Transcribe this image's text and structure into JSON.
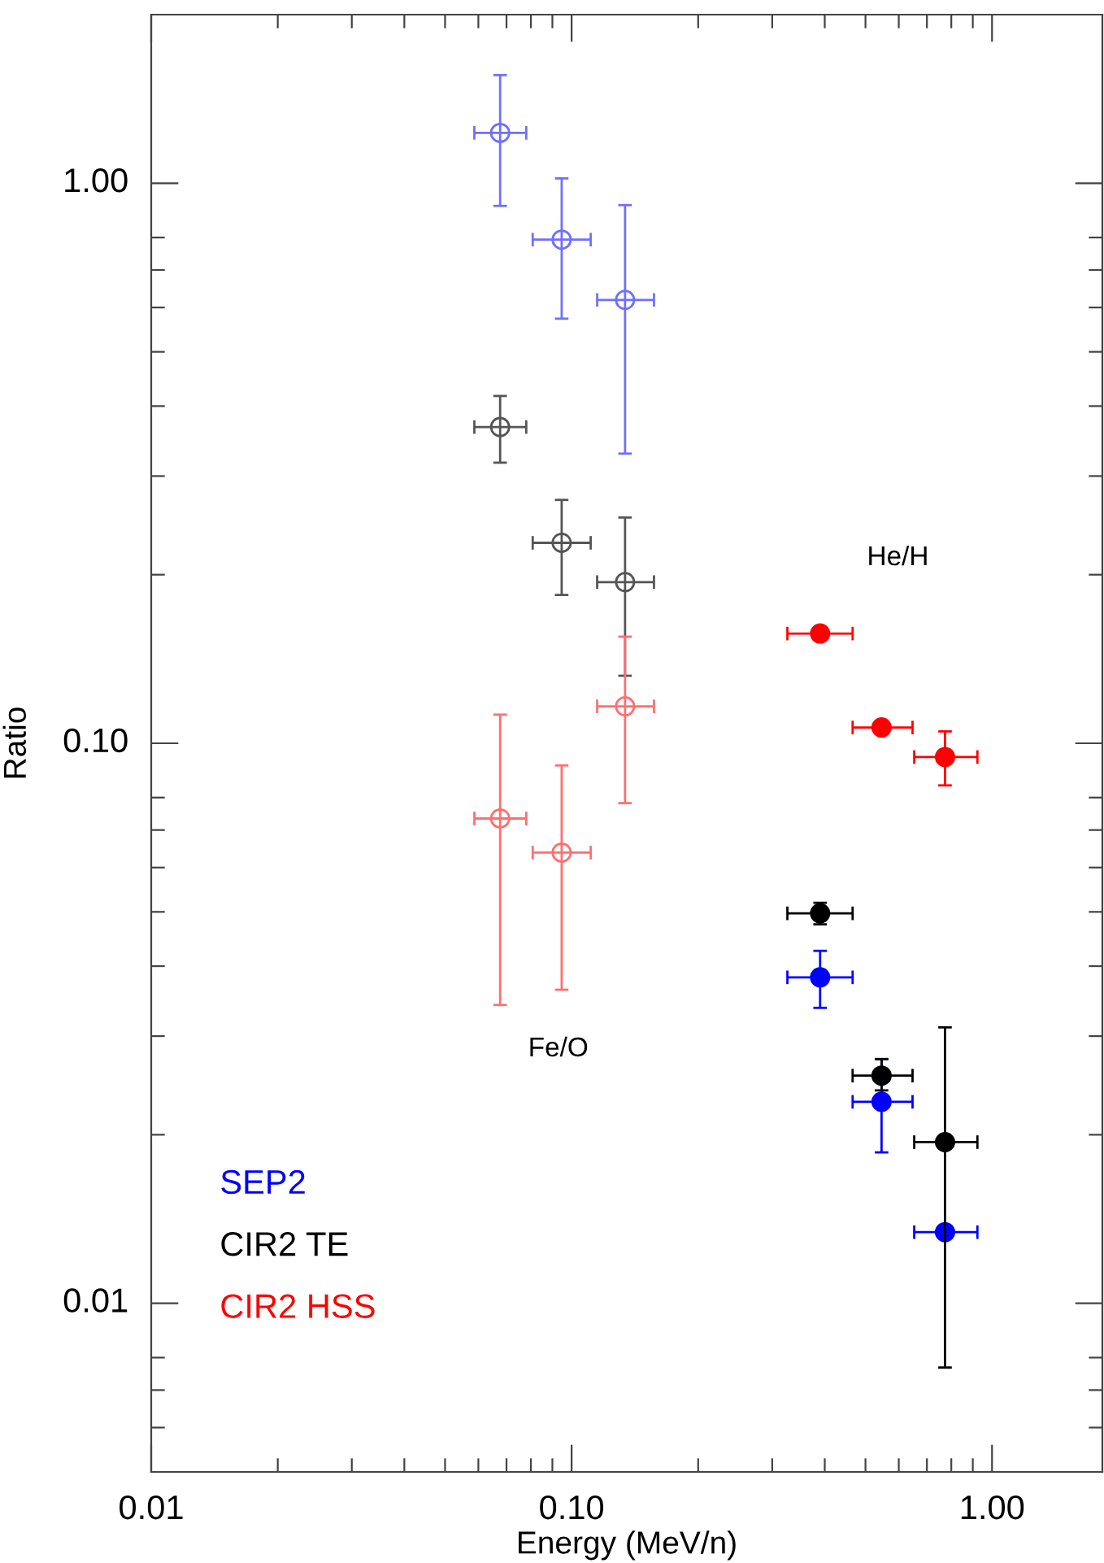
{
  "chart_data": {
    "type": "scatter",
    "xlabel": "Energy (MeV/n)",
    "ylabel": "Ratio",
    "log": "xy",
    "xlim": [
      0.01,
      1.83
    ],
    "ylim": [
      0.005,
      2.0
    ],
    "xticks": [
      {
        "value": 0.01,
        "label": "0.01"
      },
      {
        "value": 0.02,
        "label": null
      },
      {
        "value": 0.03,
        "label": null
      },
      {
        "value": 0.04,
        "label": null
      },
      {
        "value": 0.05,
        "label": null
      },
      {
        "value": 0.06,
        "label": null
      },
      {
        "value": 0.07,
        "label": null
      },
      {
        "value": 0.08,
        "label": null
      },
      {
        "value": 0.09,
        "label": null
      },
      {
        "value": 0.1,
        "label": "0.10"
      },
      {
        "value": 0.2,
        "label": null
      },
      {
        "value": 0.3,
        "label": null
      },
      {
        "value": 0.4,
        "label": null
      },
      {
        "value": 0.5,
        "label": null
      },
      {
        "value": 0.6,
        "label": null
      },
      {
        "value": 0.7,
        "label": null
      },
      {
        "value": 0.8,
        "label": null
      },
      {
        "value": 0.9,
        "label": null
      },
      {
        "value": 1,
        "label": "1.00"
      }
    ],
    "yticks": [
      {
        "value": 0.006,
        "label": null
      },
      {
        "value": 0.007,
        "label": null
      },
      {
        "value": 0.008,
        "label": null
      },
      {
        "value": 0.01,
        "label": "0.01"
      },
      {
        "value": 0.02,
        "label": null
      },
      {
        "value": 0.03,
        "label": null
      },
      {
        "value": 0.04,
        "label": null
      },
      {
        "value": 0.05,
        "label": null
      },
      {
        "value": 0.06,
        "label": null
      },
      {
        "value": 0.07,
        "label": null
      },
      {
        "value": 0.08,
        "label": null
      },
      {
        "value": 0.1,
        "label": "0.10"
      },
      {
        "value": 0.2,
        "label": null
      },
      {
        "value": 0.3,
        "label": null
      },
      {
        "value": 0.4,
        "label": null
      },
      {
        "value": 0.5,
        "label": null
      },
      {
        "value": 0.6,
        "label": null
      },
      {
        "value": 0.7,
        "label": null
      },
      {
        "value": 0.8,
        "label": null
      },
      {
        "value": 1,
        "label": "1.00"
      }
    ],
    "grid": false,
    "legend": "bottom left",
    "marker": "circle",
    "annotations": [
      "He/H",
      "Fe/O"
    ],
    "series": [
      {
        "color": "#6f6fff",
        "x": [
          0.0676,
          0.0947,
          0.134
        ],
        "values": [
          1.23,
          0.793,
          0.619
        ],
        "errors": [
          [
            0.911,
            1.56
          ],
          [
            0.573,
            1.02
          ],
          [
            0.329,
            0.914
          ]
        ],
        "xerrors": [
          [
            0.0587,
            0.078
          ],
          [
            0.0808,
            0.111
          ],
          [
            0.115,
            0.157
          ]
        ]
      },
      {
        "color": "#555555",
        "x": [
          0.0676,
          0.0947,
          0.134
        ],
        "values": [
          0.367,
          0.228,
          0.194
        ],
        "errors": [
          [
            0.317,
            0.417
          ],
          [
            0.184,
            0.272
          ],
          [
            0.132,
            0.253
          ]
        ],
        "xerrors": [
          [
            0.0587,
            0.078
          ],
          [
            0.0808,
            0.111
          ],
          [
            0.115,
            0.157
          ]
        ]
      },
      {
        "color": "#ff6f6f",
        "x": [
          0.0676,
          0.0947,
          0.134
        ],
        "values": [
          0.0734,
          0.0638,
          0.1164
        ],
        "errors": [
          [
            0.0341,
            0.1125
          ],
          [
            0.0363,
            0.0913
          ],
          [
            0.0782,
            0.155
          ]
        ],
        "xerrors": [
          [
            0.0587,
            0.078
          ],
          [
            0.0808,
            0.111
          ],
          [
            0.115,
            0.157
          ]
        ]
      },
      {
        "name": "SEP2",
        "color": "#0000ff",
        "x": [
          0.39,
          0.546,
          0.773
        ],
        "values": [
          0.0382,
          0.0229,
          0.0134
        ],
        "errors": [
          [
            0.0337,
            0.0426
          ],
          [
            0.0186,
            0.0273
          ],
          null
        ],
        "xerrors": [
          [
            0.326,
            0.466
          ],
          [
            0.466,
            0.647
          ],
          [
            0.653,
            0.923
          ]
        ]
      },
      {
        "name": "CIR2 TE",
        "color": "#000000",
        "x": [
          0.39,
          0.546,
          0.773
        ],
        "values": [
          0.0497,
          0.0255,
          0.0194
        ],
        "errors": [
          [
            0.0475,
            0.0519
          ],
          [
            0.024,
            0.0273
          ],
          [
            0.00768,
            0.0311
          ]
        ],
        "xerrors": [
          [
            0.326,
            0.466
          ],
          [
            0.466,
            0.647
          ],
          [
            0.653,
            0.923
          ]
        ]
      },
      {
        "name": "CIR2 HSS",
        "color": "#ff0000",
        "x": [
          0.39,
          0.546,
          0.773
        ],
        "values": [
          0.157,
          0.1067,
          0.0945
        ],
        "errors": [
          null,
          [
            0.104,
            0.109
          ],
          [
            0.0841,
            0.105
          ]
        ],
        "xerrors": [
          [
            0.326,
            0.466
          ],
          [
            0.466,
            0.647
          ],
          [
            0.653,
            0.923
          ]
        ]
      }
    ]
  }
}
